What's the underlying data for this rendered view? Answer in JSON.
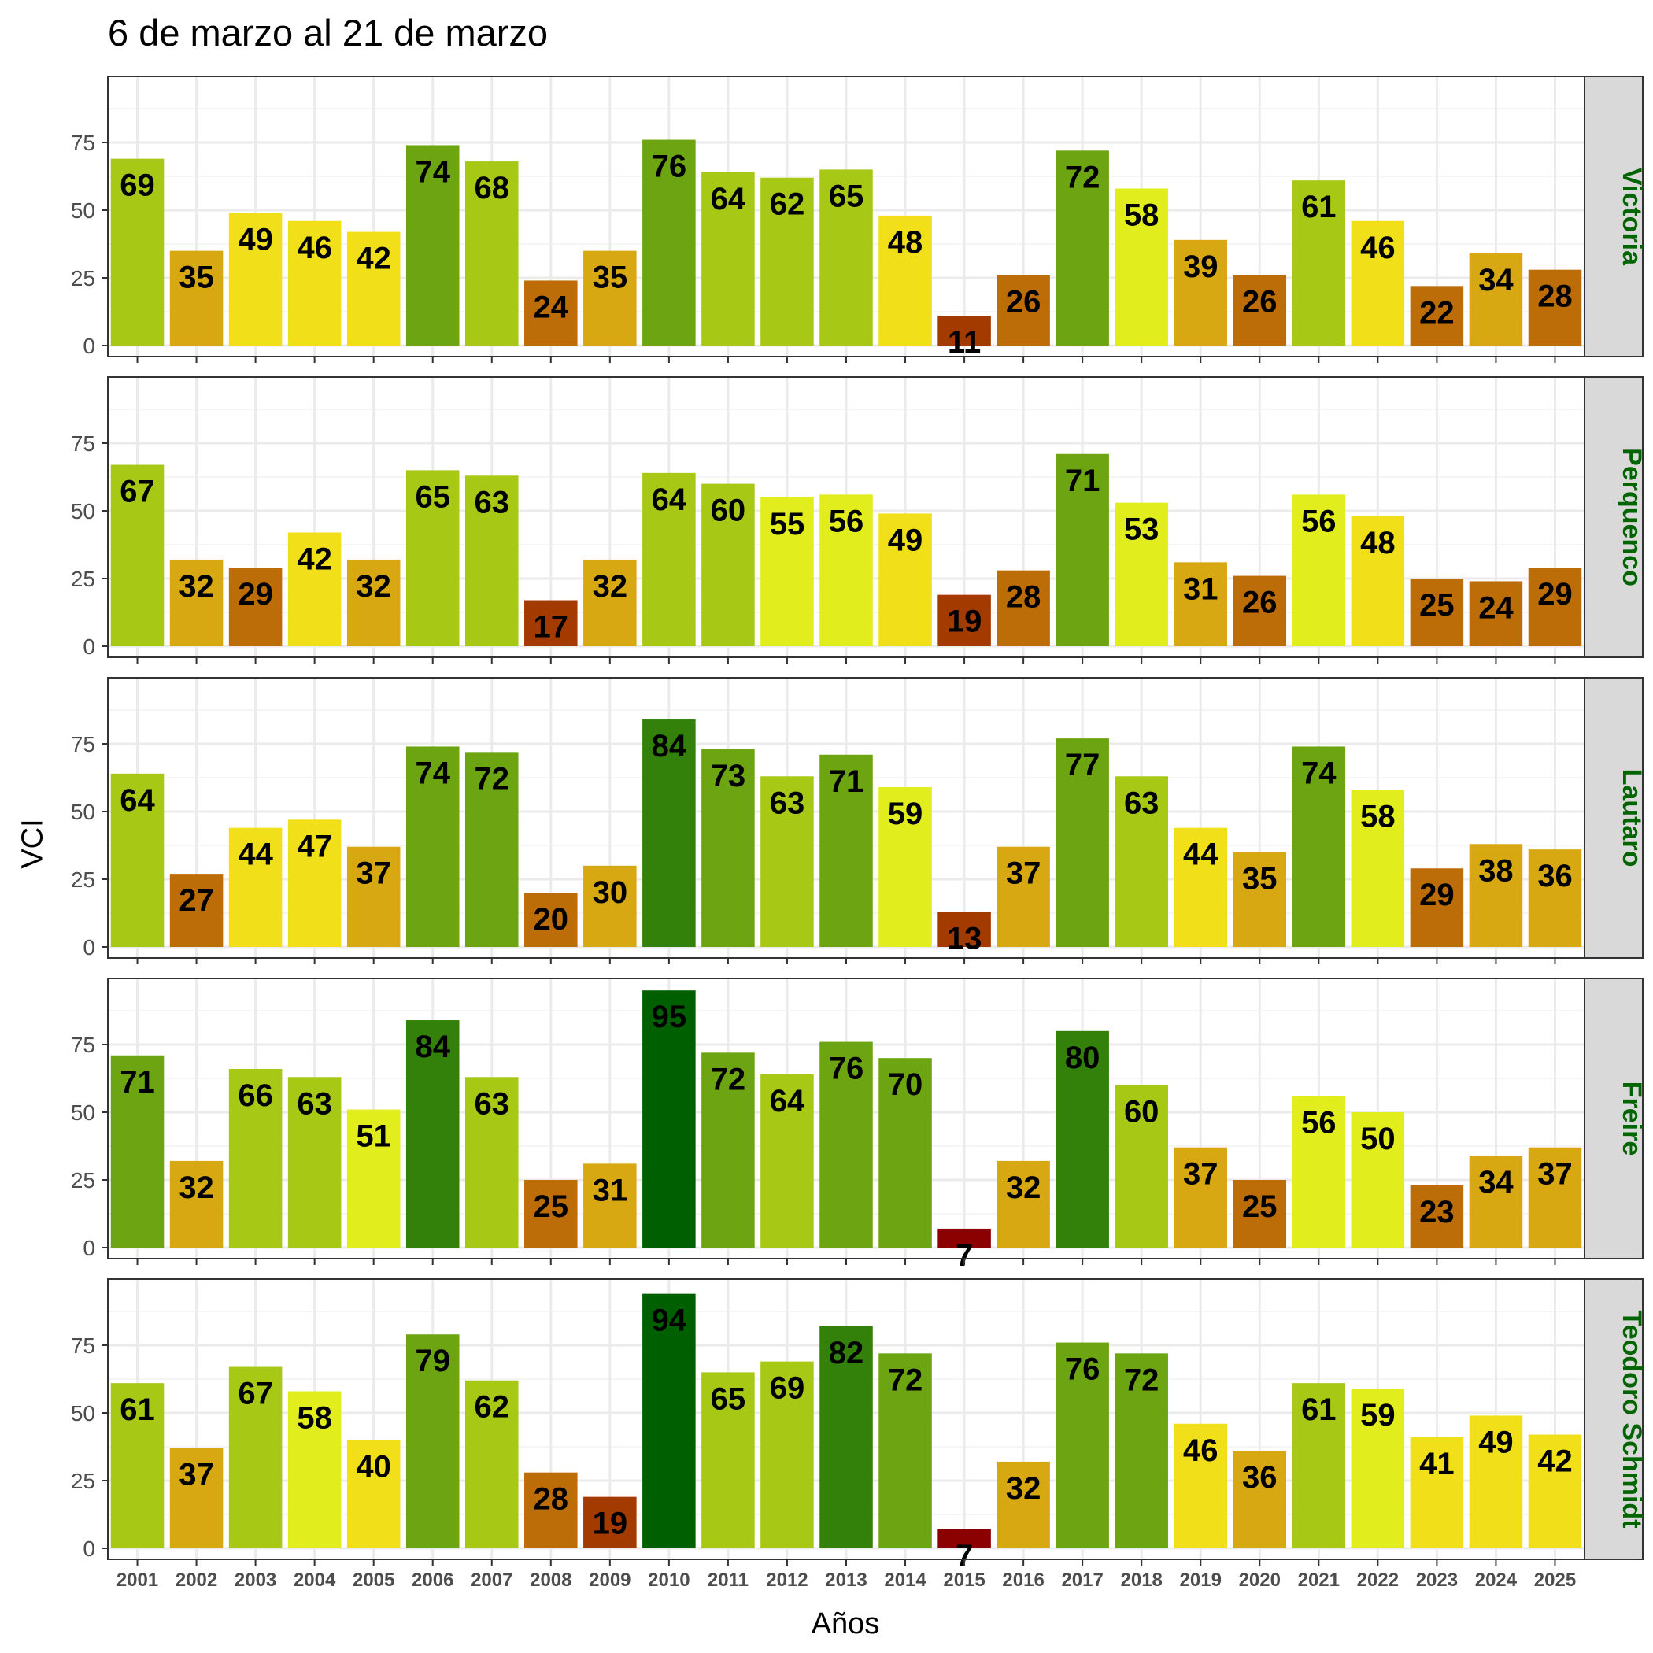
{
  "chart_data": {
    "type": "bar",
    "title": "6 de marzo al 21 de marzo",
    "xlabel": "Años",
    "ylabel": "VCI",
    "ylim": [
      0,
      100
    ],
    "yticks": [
      0,
      25,
      50,
      75
    ],
    "grid": true,
    "categories": [
      "2001",
      "2002",
      "2003",
      "2004",
      "2005",
      "2006",
      "2007",
      "2008",
      "2009",
      "2010",
      "2011",
      "2012",
      "2013",
      "2014",
      "2015",
      "2016",
      "2017",
      "2018",
      "2019",
      "2020",
      "2021",
      "2022",
      "2023",
      "2024",
      "2025"
    ],
    "facets": [
      {
        "name": "Victoria",
        "values": [
          69,
          35,
          49,
          46,
          42,
          74,
          68,
          24,
          35,
          76,
          64,
          62,
          65,
          48,
          11,
          26,
          72,
          58,
          39,
          26,
          61,
          46,
          22,
          34,
          28
        ]
      },
      {
        "name": "Perquenco",
        "values": [
          67,
          32,
          29,
          42,
          32,
          65,
          63,
          17,
          32,
          64,
          60,
          55,
          56,
          49,
          19,
          28,
          71,
          53,
          31,
          26,
          56,
          48,
          25,
          24,
          29
        ]
      },
      {
        "name": "Lautaro",
        "values": [
          64,
          27,
          44,
          47,
          37,
          74,
          72,
          20,
          30,
          84,
          73,
          63,
          71,
          59,
          13,
          37,
          77,
          63,
          44,
          35,
          74,
          58,
          29,
          38,
          36
        ]
      },
      {
        "name": "Freire",
        "values": [
          71,
          32,
          66,
          63,
          51,
          84,
          63,
          25,
          31,
          95,
          72,
          64,
          76,
          70,
          7,
          32,
          80,
          60,
          37,
          25,
          56,
          50,
          23,
          34,
          37
        ]
      },
      {
        "name": "Teodoro Schmidt",
        "values": [
          61,
          37,
          67,
          58,
          40,
          79,
          62,
          28,
          19,
          94,
          65,
          69,
          82,
          72,
          7,
          32,
          76,
          72,
          46,
          36,
          61,
          59,
          41,
          49,
          42
        ]
      }
    ],
    "color_scale": [
      {
        "min": 0,
        "max": 10,
        "color": "#8B0000"
      },
      {
        "min": 10,
        "max": 20,
        "color": "#A33A00"
      },
      {
        "min": 20,
        "max": 30,
        "color": "#BD6D07"
      },
      {
        "min": 30,
        "max": 40,
        "color": "#D8A812"
      },
      {
        "min": 40,
        "max": 50,
        "color": "#F1DF1A"
      },
      {
        "min": 50,
        "max": 60,
        "color": "#E1ED1C"
      },
      {
        "min": 60,
        "max": 70,
        "color": "#A8C816"
      },
      {
        "min": 70,
        "max": 80,
        "color": "#6CA511"
      },
      {
        "min": 80,
        "max": 90,
        "color": "#33800A"
      },
      {
        "min": 90,
        "max": 100,
        "color": "#005F00"
      }
    ],
    "strip_text_color": "#006400",
    "strip_fill": "#D9D9D9"
  }
}
